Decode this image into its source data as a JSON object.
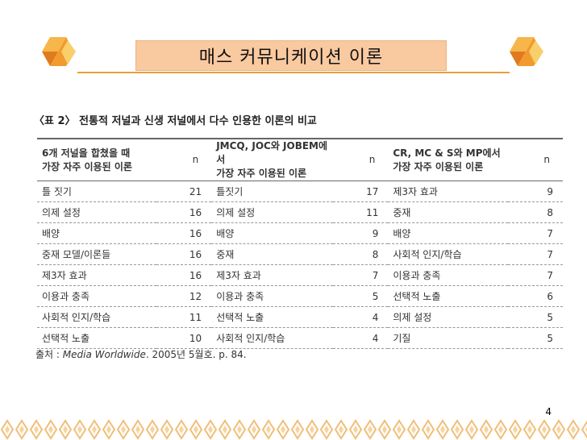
{
  "slide": {
    "title": "매스 커뮤니케이션 이론",
    "page_number": "4"
  },
  "colors": {
    "accent": "#e9a03a",
    "title_fill": "#f9c9a0",
    "pattern": "#f1bd76"
  },
  "table": {
    "caption": "〈표 2〉 전통적 저널과 신생 저널에서 다수 인용한 이론의 비교",
    "headers": {
      "col1_line1": "6개 저널을 합쳤을 때",
      "col1_line2": "가장 자주 이용된 이론",
      "col2_line1": "JMCQ, JOC와 JOBEM에서",
      "col2_line2": "가장 자주 이용된 이론",
      "col3_line1": "CR, MC & S와 MP에서",
      "col3_line2": "가장 자주 이용된 이론",
      "n": "n"
    },
    "rows": [
      {
        "t1": "틀 짓기",
        "n1": "21",
        "t2": "틀짓기",
        "n2": "17",
        "t3": "제3자 효과",
        "n3": "9"
      },
      {
        "t1": "의제 설정",
        "n1": "16",
        "t2": "의제 설정",
        "n2": "11",
        "t3": "중재",
        "n3": "8"
      },
      {
        "t1": "배양",
        "n1": "16",
        "t2": "배양",
        "n2": "9",
        "t3": "배양",
        "n3": "7"
      },
      {
        "t1": "중재 모델/이론들",
        "n1": "16",
        "t2": "중재",
        "n2": "8",
        "t3": "사회적 인지/학습",
        "n3": "7"
      },
      {
        "t1": "제3자 효과",
        "n1": "16",
        "t2": "제3자 효과",
        "n2": "7",
        "t3": "이용과 충족",
        "n3": "7"
      },
      {
        "t1": "이용과 충족",
        "n1": "12",
        "t2": "이용과 충족",
        "n2": "5",
        "t3": "선택적 노출",
        "n3": "6"
      },
      {
        "t1": "사회적 인지/학습",
        "n1": "11",
        "t2": "선택적 노출",
        "n2": "4",
        "t3": "의제 설정",
        "n3": "5"
      },
      {
        "t1": "선택적 노출",
        "n1": "10",
        "t2": "사회적 인지/학습",
        "n2": "4",
        "t3": "기질",
        "n3": "5"
      }
    ],
    "source_prefix": "출처 : ",
    "source_title": "Media Worldwide",
    "source_suffix": ". 2005년 5월호. p. 84."
  }
}
